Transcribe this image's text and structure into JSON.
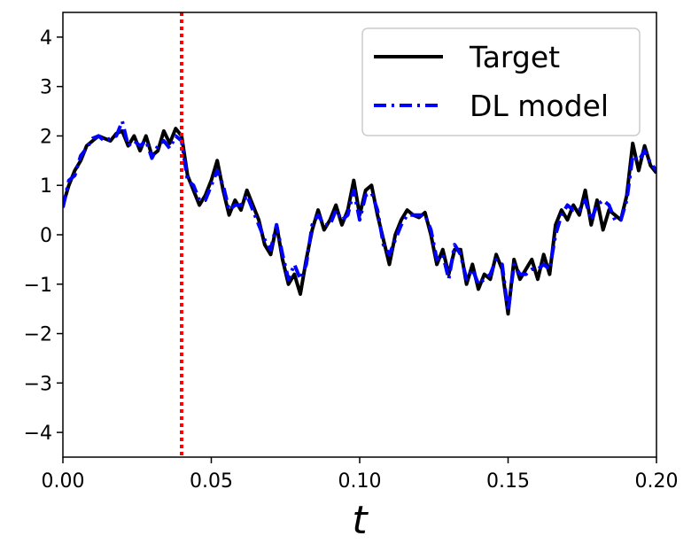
{
  "chart_data": {
    "type": "line",
    "title": "",
    "xlabel": "t",
    "ylabel": "",
    "xlim": [
      0.0,
      0.2
    ],
    "ylim": [
      -4.5,
      4.5
    ],
    "xticks": [
      "0.00",
      "0.05",
      "0.10",
      "0.15",
      "0.20"
    ],
    "yticks": [
      "4",
      "3",
      "2",
      "1",
      "0",
      "−1",
      "−2",
      "−3",
      "−4"
    ],
    "grid": false,
    "legend_position": "top-right",
    "vline": {
      "x": 0.04,
      "color": "#ff0000",
      "style": "dotted"
    },
    "x": [
      0.0,
      0.002,
      0.004,
      0.006,
      0.008,
      0.01,
      0.012,
      0.014,
      0.016,
      0.018,
      0.02,
      0.022,
      0.024,
      0.026,
      0.028,
      0.03,
      0.032,
      0.034,
      0.036,
      0.038,
      0.04,
      0.042,
      0.044,
      0.046,
      0.048,
      0.05,
      0.052,
      0.054,
      0.056,
      0.058,
      0.06,
      0.062,
      0.064,
      0.066,
      0.068,
      0.07,
      0.072,
      0.074,
      0.076,
      0.078,
      0.08,
      0.082,
      0.084,
      0.086,
      0.088,
      0.09,
      0.092,
      0.094,
      0.096,
      0.098,
      0.1,
      0.102,
      0.104,
      0.106,
      0.108,
      0.11,
      0.112,
      0.114,
      0.116,
      0.118,
      0.12,
      0.122,
      0.124,
      0.126,
      0.128,
      0.13,
      0.132,
      0.134,
      0.136,
      0.138,
      0.14,
      0.142,
      0.144,
      0.146,
      0.148,
      0.15,
      0.152,
      0.154,
      0.156,
      0.158,
      0.16,
      0.162,
      0.164,
      0.166,
      0.168,
      0.17,
      0.172,
      0.174,
      0.176,
      0.178,
      0.18,
      0.182,
      0.184,
      0.186,
      0.188,
      0.19,
      0.192,
      0.194,
      0.196,
      0.198,
      0.2
    ],
    "series": [
      {
        "name": "Target",
        "color": "#000000",
        "style": "solid",
        "values": [
          0.6,
          1.0,
          1.3,
          1.5,
          1.8,
          1.9,
          2.0,
          1.95,
          1.9,
          2.05,
          2.1,
          1.8,
          2.0,
          1.7,
          2.0,
          1.6,
          1.7,
          2.1,
          1.85,
          2.15,
          2.0,
          1.2,
          0.9,
          0.6,
          0.8,
          1.1,
          1.5,
          0.9,
          0.4,
          0.7,
          0.5,
          0.9,
          0.6,
          0.3,
          -0.2,
          -0.4,
          0.2,
          -0.5,
          -1.0,
          -0.8,
          -1.2,
          -0.5,
          0.1,
          0.5,
          0.1,
          0.3,
          0.6,
          0.2,
          0.5,
          1.1,
          0.4,
          0.9,
          1.0,
          0.4,
          -0.1,
          -0.6,
          0.0,
          0.3,
          0.5,
          0.4,
          0.35,
          0.45,
          0.0,
          -0.6,
          -0.3,
          -0.8,
          -0.3,
          -0.3,
          -1.0,
          -0.6,
          -1.1,
          -0.8,
          -0.9,
          -0.4,
          -0.7,
          -1.6,
          -0.5,
          -0.9,
          -0.7,
          -0.5,
          -0.9,
          -0.4,
          -0.8,
          0.2,
          0.5,
          0.3,
          0.6,
          0.4,
          0.9,
          0.2,
          0.7,
          0.1,
          0.5,
          0.4,
          0.3,
          0.8,
          1.85,
          1.3,
          1.8,
          1.4,
          1.25
        ]
      },
      {
        "name": "DL model",
        "color": "#0000ff",
        "style": "dashdot",
        "values": [
          0.55,
          1.1,
          1.2,
          1.6,
          1.75,
          1.95,
          2.0,
          1.9,
          1.95,
          2.0,
          2.3,
          1.8,
          1.9,
          1.8,
          1.9,
          1.55,
          1.8,
          1.9,
          1.75,
          2.0,
          1.9,
          1.1,
          1.0,
          0.7,
          0.7,
          1.0,
          1.3,
          1.0,
          0.5,
          0.6,
          0.6,
          0.8,
          0.5,
          0.2,
          -0.1,
          -0.3,
          0.2,
          -0.4,
          -0.9,
          -0.6,
          -0.9,
          -0.6,
          0.2,
          0.4,
          0.2,
          0.2,
          0.5,
          0.3,
          0.4,
          0.9,
          0.3,
          0.8,
          0.85,
          0.5,
          -0.2,
          -0.4,
          -0.1,
          0.2,
          0.4,
          0.4,
          0.4,
          0.4,
          0.1,
          -0.5,
          -0.4,
          -0.9,
          -0.2,
          -0.4,
          -0.9,
          -0.7,
          -1.0,
          -0.9,
          -0.8,
          -0.5,
          -0.6,
          -1.55,
          -0.6,
          -0.8,
          -0.8,
          -0.7,
          -0.7,
          -0.6,
          -0.7,
          0.0,
          0.4,
          0.6,
          0.5,
          0.5,
          0.7,
          0.3,
          0.6,
          0.7,
          0.6,
          0.3,
          0.3,
          0.7,
          1.6,
          1.5,
          1.7,
          1.45,
          1.3
        ]
      }
    ]
  }
}
